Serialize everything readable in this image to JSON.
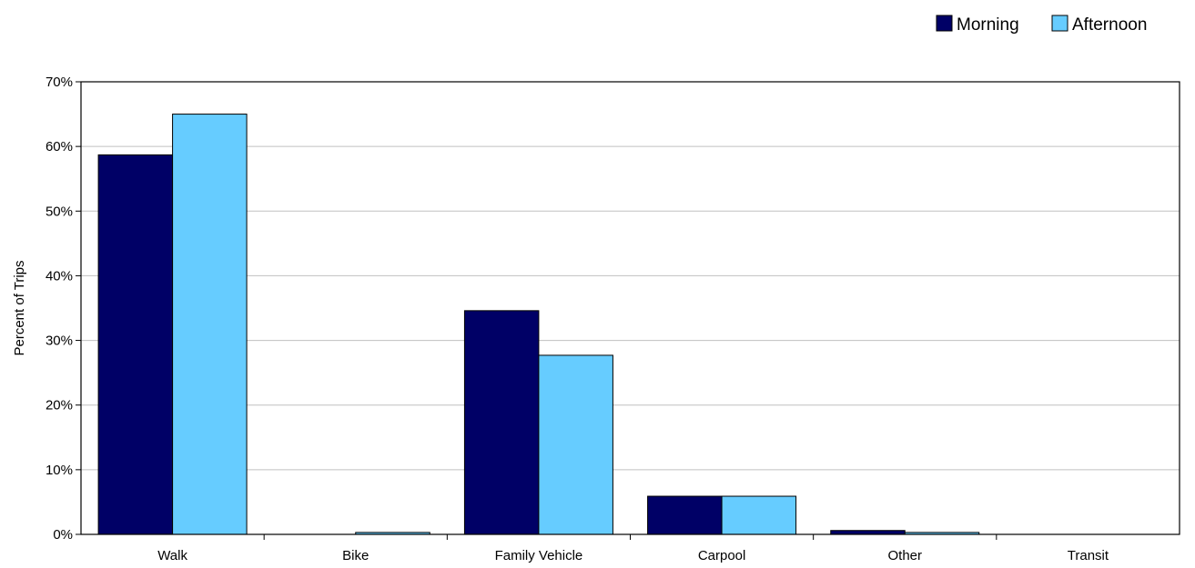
{
  "chart_data": {
    "type": "bar",
    "title": "",
    "xlabel": "",
    "ylabel": "Percent of Trips",
    "ylim": [
      0,
      70
    ],
    "ytick_step": 10,
    "ytick_suffix": "%",
    "grid": "horizontal",
    "legend_position": "top-right",
    "categories": [
      "Walk",
      "Bike",
      "Family Vehicle",
      "Carpool",
      "Other",
      "Transit"
    ],
    "series": [
      {
        "name": "Morning",
        "color": "#000066",
        "values": [
          58.7,
          0,
          34.6,
          5.9,
          0.6,
          0
        ]
      },
      {
        "name": "Afternoon",
        "color": "#66CCFF",
        "values": [
          65.0,
          0.3,
          27.7,
          5.9,
          0.3,
          0
        ]
      }
    ]
  }
}
